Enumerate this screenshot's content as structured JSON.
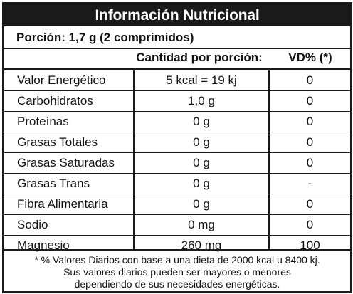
{
  "title": "Información Nutricional",
  "portion": "Porción: 1,7 g (2 comprimidos)",
  "headers": {
    "quantity": "Cantidad por porción:",
    "vd": "VD% (*)"
  },
  "rows": [
    {
      "name": "Valor Energético",
      "qty": "5 kcal = 19 kj",
      "vd": "0"
    },
    {
      "name": "Carbohidratos",
      "qty": "1,0 g",
      "vd": "0"
    },
    {
      "name": "Proteínas",
      "qty": "0 g",
      "vd": "0"
    },
    {
      "name": "Grasas Totales",
      "qty": "0 g",
      "vd": "0"
    },
    {
      "name": "Grasas Saturadas",
      "qty": "0 g",
      "vd": "0"
    },
    {
      "name": "Grasas Trans",
      "qty": "0 g",
      "vd": "-"
    },
    {
      "name": "Fibra Alimentaria",
      "qty": "0 g",
      "vd": "0"
    },
    {
      "name": "Sodio",
      "qty": "0 mg",
      "vd": "0"
    },
    {
      "name": "Magnesio",
      "qty": "260 mg",
      "vd": "100"
    }
  ],
  "footnote": [
    "* % Valores Diarios con base a una dieta de 2000 kcal u 8400 kj.",
    "Sus valores diarios pueden ser mayores o menores",
    "dependiendo de sus necesidades energéticas."
  ]
}
